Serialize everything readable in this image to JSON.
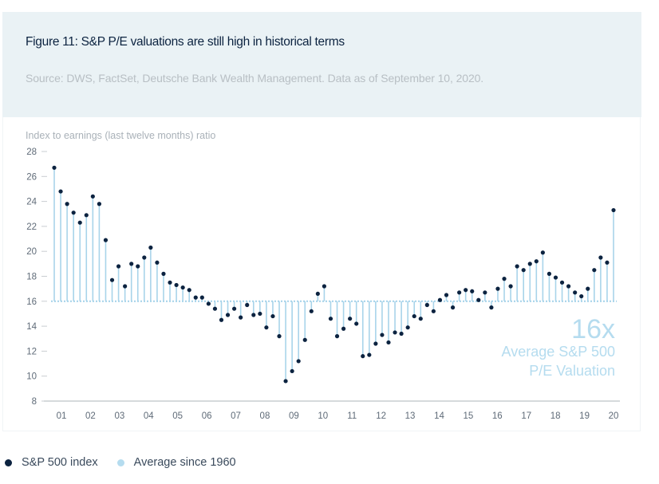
{
  "figure": {
    "title": "Figure 11: S&P P/E valuations are still high in historical terms",
    "source": "Source: DWS, FactSet, Deutsche Bank Wealth Management. Data as of September 10, 2020."
  },
  "colors": {
    "header_bg": "#eaf2f5",
    "point": "#0c2340",
    "stem": "#a8d4ea",
    "average_line": "#a8d4ea",
    "annotation": "#b5dcef",
    "axis_text": "#5f6b78",
    "axis_line": "#c9cdd1"
  },
  "chart_data": {
    "type": "scatter",
    "subtype": "lollipop",
    "title": "Figure 11: S&P P/E valuations are still high in historical terms",
    "ylabel": "Index to earnings (last twelve months) ratio",
    "xlabel": "",
    "ylim": [
      8,
      28
    ],
    "yticks": [
      28,
      26,
      24,
      22,
      20,
      18,
      16,
      14,
      12,
      10,
      8
    ],
    "xtick_labels": [
      "01",
      "02",
      "03",
      "04",
      "05",
      "06",
      "07",
      "08",
      "09",
      "10",
      "11",
      "12",
      "13",
      "14",
      "15",
      "16",
      "17",
      "18",
      "19",
      "20"
    ],
    "baseline": 16,
    "grid": false,
    "legend_position": "bottom-left",
    "annotation": {
      "value_label": "16x",
      "line1": "Average S&P 500",
      "line2": "P/E Valuation"
    },
    "series": [
      {
        "name": "S&P 500 index",
        "values": [
          26.7,
          24.8,
          23.8,
          23.1,
          22.3,
          22.9,
          24.4,
          23.8,
          20.9,
          17.7,
          18.8,
          17.2,
          19.0,
          18.8,
          19.5,
          20.3,
          19.1,
          18.2,
          17.5,
          17.3,
          17.1,
          16.9,
          16.3,
          16.3,
          15.8,
          15.4,
          14.5,
          14.9,
          15.4,
          14.7,
          15.7,
          14.9,
          15.0,
          13.9,
          14.8,
          13.2,
          9.6,
          10.4,
          11.2,
          12.9,
          15.2,
          16.6,
          17.2,
          14.6,
          13.2,
          13.8,
          14.6,
          14.2,
          11.6,
          11.7,
          12.6,
          13.3,
          12.7,
          13.5,
          13.4,
          13.9,
          14.8,
          14.6,
          15.7,
          15.2,
          16.1,
          16.5,
          15.5,
          16.7,
          16.9,
          16.8,
          16.1,
          16.7,
          15.5,
          17.0,
          17.8,
          17.2,
          18.8,
          18.5,
          19.0,
          19.2,
          19.9,
          18.2,
          17.9,
          17.5,
          17.2,
          16.7,
          16.4,
          17.0,
          18.5,
          19.5,
          19.1,
          23.3
        ]
      },
      {
        "name": "Average since 1960",
        "value": 16
      }
    ]
  },
  "legend": {
    "items": [
      {
        "label": "S&P 500 index",
        "color": "#0c2340"
      },
      {
        "label": "Average since 1960",
        "color": "#a8d4ea"
      }
    ]
  }
}
